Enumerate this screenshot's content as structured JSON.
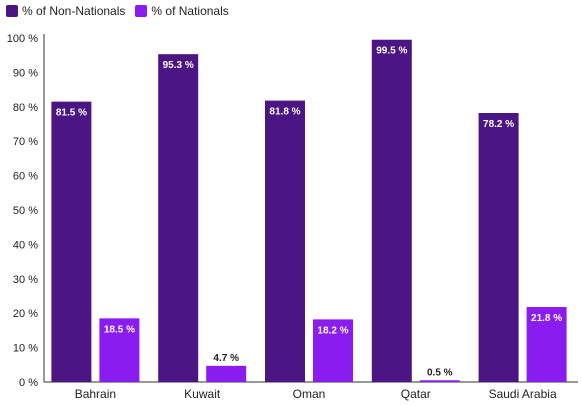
{
  "chart_data": {
    "type": "bar",
    "categories": [
      "Bahrain",
      "Kuwait",
      "Oman",
      "Qatar",
      "Saudi Arabia"
    ],
    "series": [
      {
        "name": "% of Non-Nationals",
        "values": [
          81.5,
          95.3,
          81.8,
          99.5,
          78.2
        ],
        "labels": [
          "81.5 %",
          "95.3 %",
          "81.8 %",
          "99.5 %",
          "78.2 %"
        ],
        "color": "#4b1684"
      },
      {
        "name": "% of Nationals",
        "values": [
          18.5,
          4.7,
          18.2,
          0.5,
          21.8
        ],
        "labels": [
          "18.5 %",
          "4.7 %",
          "18.2 %",
          "0.5 %",
          "21.8 %"
        ],
        "color": "#8a1cf0"
      }
    ],
    "yticks": [
      "0 %",
      "10 %",
      "20 %",
      "30 %",
      "40 %",
      "50 %",
      "60 %",
      "70 %",
      "80 %",
      "90 %",
      "100 %"
    ],
    "ylim": [
      0,
      100
    ],
    "legend_position": "top-left",
    "grid": false
  }
}
